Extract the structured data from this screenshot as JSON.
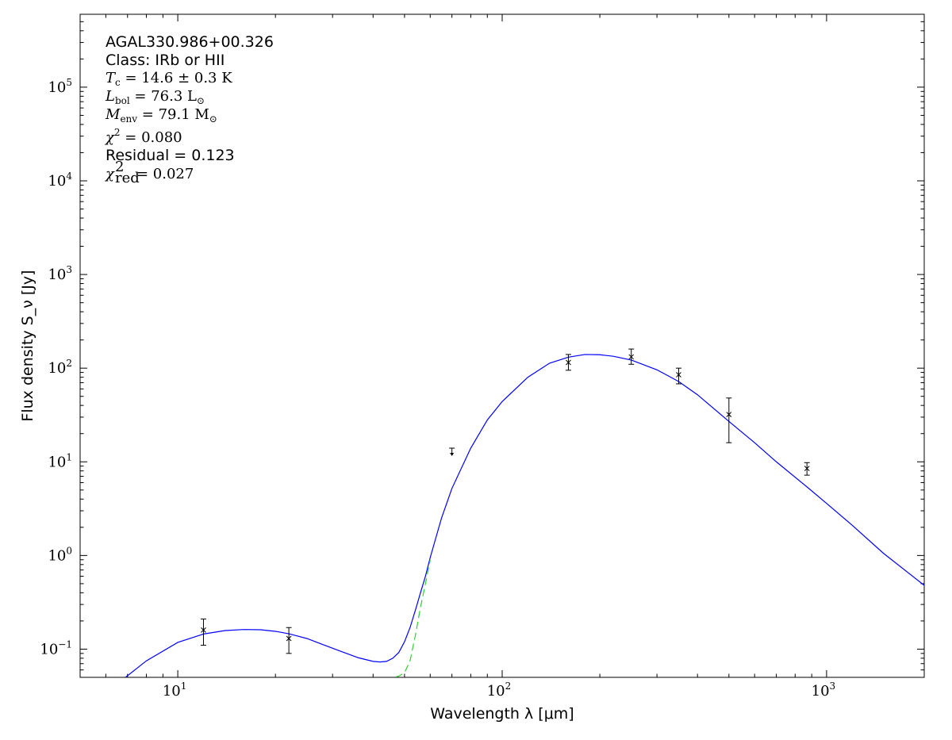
{
  "chart_data": {
    "type": "scatter",
    "x_scale": "log",
    "y_scale": "log",
    "xlim": [
      5,
      2000
    ],
    "ylim": [
      0.05,
      600000
    ],
    "xlabel": "Wavelength λ [μm]",
    "ylabel": "Flux density S_ν [Jy]",
    "x_ticks": [
      {
        "value": 10,
        "base": "10",
        "exp": "1"
      },
      {
        "value": 100,
        "base": "10",
        "exp": "2"
      },
      {
        "value": 1000,
        "base": "10",
        "exp": "3"
      }
    ],
    "y_ticks": [
      {
        "value": 0.1,
        "base": "10",
        "exp": "−1"
      },
      {
        "value": 1,
        "base": "10",
        "exp": "0"
      },
      {
        "value": 10,
        "base": "10",
        "exp": "1"
      },
      {
        "value": 100,
        "base": "10",
        "exp": "2"
      },
      {
        "value": 1000,
        "base": "10",
        "exp": "3"
      },
      {
        "value": 10000,
        "base": "10",
        "exp": "4"
      },
      {
        "value": 100000,
        "base": "10",
        "exp": "5"
      }
    ],
    "annotations": {
      "source": "AGAL330.986+00.326",
      "class_line": "Class: IRb or HII",
      "tc": {
        "sym": "T",
        "sub": "c",
        "val": " = 14.6 ± 0.3 K"
      },
      "lbol": {
        "sym": "L",
        "sub": "bol",
        "val": " = 76.3 L",
        "sun": "⊙"
      },
      "menv": {
        "sym": "M",
        "sub": "env",
        "val": " = 79.1 M",
        "sun": "⊙"
      },
      "chi2": {
        "sym": "χ",
        "sup": "2",
        "val": " = 0.080"
      },
      "residual": "Residual = 0.123",
      "chi2red": {
        "sym": "χ",
        "sup": "2",
        "sub": "red",
        "val": " = 0.027"
      }
    },
    "points": [
      {
        "x": 12,
        "y": 0.16,
        "ylo": 0.11,
        "yhi": 0.21
      },
      {
        "x": 22,
        "y": 0.13,
        "ylo": 0.09,
        "yhi": 0.17
      },
      {
        "x": 160,
        "y": 115,
        "ylo": 95,
        "yhi": 140
      },
      {
        "x": 250,
        "y": 132,
        "ylo": 110,
        "yhi": 160
      },
      {
        "x": 350,
        "y": 85,
        "ylo": 68,
        "yhi": 100
      },
      {
        "x": 500,
        "y": 32,
        "ylo": 16,
        "yhi": 48
      },
      {
        "x": 870,
        "y": 8.5,
        "ylo": 7.2,
        "yhi": 9.8
      }
    ],
    "upper_limits": [
      {
        "x": 70,
        "y": 14
      }
    ],
    "series": [
      {
        "type": "line",
        "style": "solid",
        "color": "#0000ff",
        "x": [
          6.9,
          8,
          10,
          12,
          14,
          16,
          18,
          20,
          22,
          25,
          28,
          32,
          36,
          40,
          42,
          44,
          46,
          48,
          50,
          52,
          54,
          56,
          58,
          60,
          65,
          70,
          80,
          90,
          100,
          120,
          140,
          160,
          180,
          200,
          220,
          250,
          300,
          350,
          400,
          500,
          600,
          700,
          870,
          1000,
          1200,
          1500,
          2000
        ],
        "y": [
          0.05,
          0.075,
          0.118,
          0.145,
          0.158,
          0.162,
          0.161,
          0.155,
          0.146,
          0.13,
          0.112,
          0.094,
          0.081,
          0.074,
          0.073,
          0.074,
          0.08,
          0.092,
          0.12,
          0.17,
          0.26,
          0.4,
          0.6,
          0.95,
          2.5,
          5.2,
          14,
          28,
          44,
          80,
          113,
          131,
          140,
          139,
          134,
          122,
          96,
          72,
          52,
          27,
          16,
          10,
          5.4,
          3.6,
          2.1,
          1.05,
          0.48
        ]
      },
      {
        "type": "line",
        "style": "dashed",
        "color": "#33cc33",
        "x": [
          47,
          48,
          50,
          52,
          54,
          56,
          58,
          60
        ],
        "y": [
          0.0505,
          0.0515,
          0.056,
          0.075,
          0.14,
          0.28,
          0.5,
          0.9
        ]
      }
    ],
    "grid": false,
    "legend": "none"
  }
}
